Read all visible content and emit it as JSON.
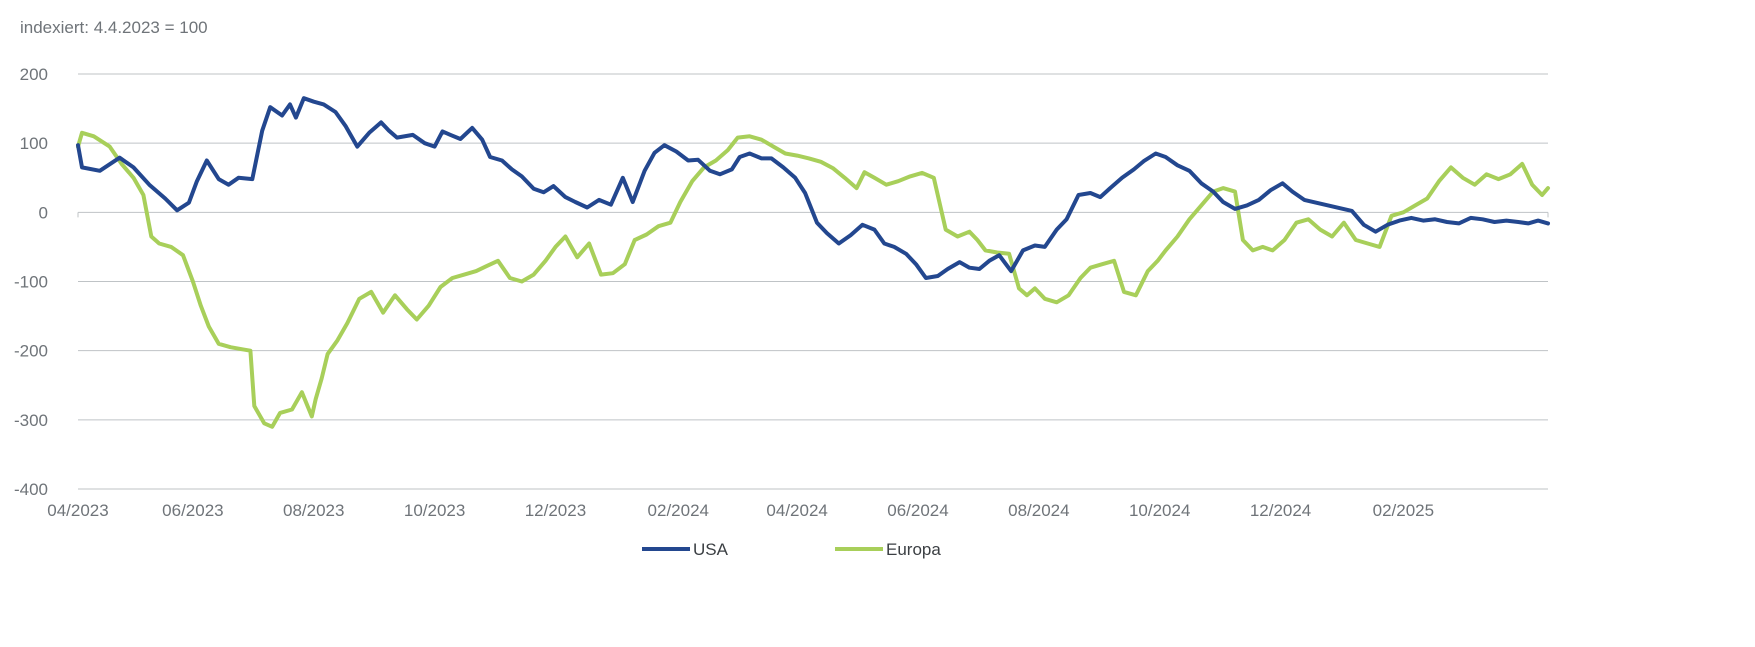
{
  "chart_data": {
    "type": "line",
    "title": "",
    "subtitle": "indexiert: 4.4.2023 = 100",
    "xlabel": "",
    "ylabel": "",
    "ylim": [
      -400,
      200
    ],
    "yticks": [
      200,
      100,
      0,
      -100,
      -200,
      -300,
      -400
    ],
    "ytick_labels": [
      "200",
      "100",
      "0",
      "-100",
      "-200",
      "-300",
      "-400"
    ],
    "xlim": [
      "2023-04-04",
      "2025-04-15"
    ],
    "xticks": [
      "2023-04-04",
      "2023-06-01",
      "2023-08-01",
      "2023-10-01",
      "2023-12-01",
      "2024-02-01",
      "2024-04-01",
      "2024-06-01",
      "2024-08-01",
      "2024-10-01",
      "2024-12-01",
      "2025-02-01"
    ],
    "xtick_labels": [
      "04/2023",
      "06/2023",
      "08/2023",
      "10/2023",
      "12/2023",
      "02/2024",
      "04/2024",
      "06/2024",
      "08/2024",
      "10/2024",
      "12/2024",
      "02/2025"
    ],
    "grid": "horizontal",
    "legend_position": "bottom-center",
    "series": [
      {
        "name": "USA",
        "color": "#23478f",
        "x": [
          "2023-04-04",
          "2023-04-06",
          "2023-04-15",
          "2023-04-25",
          "2023-05-02",
          "2023-05-10",
          "2023-05-18",
          "2023-05-24",
          "2023-05-30",
          "2023-06-03",
          "2023-06-08",
          "2023-06-14",
          "2023-06-19",
          "2023-06-24",
          "2023-07-01",
          "2023-07-06",
          "2023-07-10",
          "2023-07-16",
          "2023-07-20",
          "2023-07-23",
          "2023-07-27",
          "2023-08-01",
          "2023-08-06",
          "2023-08-12",
          "2023-08-17",
          "2023-08-23",
          "2023-08-29",
          "2023-09-04",
          "2023-09-08",
          "2023-09-12",
          "2023-09-20",
          "2023-09-26",
          "2023-10-01",
          "2023-10-05",
          "2023-10-09",
          "2023-10-14",
          "2023-10-20",
          "2023-10-25",
          "2023-10-29",
          "2023-11-04",
          "2023-11-09",
          "2023-11-14",
          "2023-11-20",
          "2023-11-25",
          "2023-11-30",
          "2023-12-06",
          "2023-12-11",
          "2023-12-17",
          "2023-12-23",
          "2023-12-29",
          "2024-01-04",
          "2024-01-09",
          "2024-01-15",
          "2024-01-20",
          "2024-01-25",
          "2024-01-31",
          "2024-02-06",
          "2024-02-11",
          "2024-02-17",
          "2024-02-22",
          "2024-02-28",
          "2024-03-03",
          "2024-03-08",
          "2024-03-14",
          "2024-03-19",
          "2024-03-25",
          "2024-03-31",
          "2024-04-05",
          "2024-04-11",
          "2024-04-16",
          "2024-04-22",
          "2024-04-28",
          "2024-05-04",
          "2024-05-10",
          "2024-05-15",
          "2024-05-20",
          "2024-05-26",
          "2024-05-31",
          "2024-06-05",
          "2024-06-11",
          "2024-06-16",
          "2024-06-22",
          "2024-06-27",
          "2024-07-02",
          "2024-07-07",
          "2024-07-12",
          "2024-07-18",
          "2024-07-24",
          "2024-07-30",
          "2024-08-04",
          "2024-08-10",
          "2024-08-15",
          "2024-08-21",
          "2024-08-27",
          "2024-09-01",
          "2024-09-06",
          "2024-09-12",
          "2024-09-18",
          "2024-09-23",
          "2024-09-29",
          "2024-10-04",
          "2024-10-10",
          "2024-10-16",
          "2024-10-22",
          "2024-10-28",
          "2024-11-02",
          "2024-11-08",
          "2024-11-14",
          "2024-11-20",
          "2024-11-26",
          "2024-12-02",
          "2024-12-07",
          "2024-12-13",
          "2024-12-19",
          "2024-12-25",
          "2024-12-31",
          "2025-01-06",
          "2025-01-12",
          "2025-01-18",
          "2025-01-24",
          "2025-01-30",
          "2025-02-05",
          "2025-02-11",
          "2025-02-17",
          "2025-02-23",
          "2025-03-01",
          "2025-03-07",
          "2025-03-13",
          "2025-03-19",
          "2025-03-25",
          "2025-03-31",
          "2025-04-05",
          "2025-04-10",
          "2025-04-15"
        ],
        "values": [
          97,
          65,
          60,
          79,
          65,
          40,
          20,
          3,
          14,
          45,
          75,
          48,
          40,
          50,
          48,
          118,
          152,
          140,
          156,
          137,
          165,
          160,
          156,
          145,
          125,
          95,
          115,
          130,
          118,
          108,
          112,
          100,
          95,
          117,
          112,
          106,
          122,
          105,
          80,
          75,
          62,
          52,
          34,
          29,
          38,
          22,
          15,
          7,
          18,
          11,
          50,
          15,
          60,
          86,
          97,
          88,
          75,
          76,
          60,
          55,
          62,
          80,
          85,
          78,
          78,
          65,
          50,
          28,
          -15,
          -30,
          -45,
          -33,
          -18,
          -25,
          -45,
          -50,
          -60,
          -75,
          -95,
          -92,
          -82,
          -72,
          -80,
          -82,
          -70,
          -62,
          -85,
          -55,
          -48,
          -50,
          -25,
          -10,
          25,
          28,
          22,
          35,
          50,
          62,
          74,
          85,
          80,
          68,
          60,
          42,
          30,
          15,
          5,
          10,
          18,
          32,
          42,
          30,
          18,
          14,
          10,
          6,
          2,
          -18,
          -28,
          -18,
          -12,
          -8,
          -12,
          -10,
          -14,
          -16,
          -8,
          -10,
          -14,
          -12,
          -14,
          -16,
          -12,
          -16
        ]
      },
      {
        "name": "Europa",
        "color": "#a8cf5a",
        "x": [
          "2023-04-04",
          "2023-04-06",
          "2023-04-12",
          "2023-04-20",
          "2023-04-26",
          "2023-05-02",
          "2023-05-07",
          "2023-05-11",
          "2023-05-15",
          "2023-05-21",
          "2023-05-27",
          "2023-06-01",
          "2023-06-05",
          "2023-06-09",
          "2023-06-14",
          "2023-06-20",
          "2023-06-26",
          "2023-06-30",
          "2023-07-02",
          "2023-07-07",
          "2023-07-11",
          "2023-07-15",
          "2023-07-21",
          "2023-07-26",
          "2023-07-31",
          "2023-08-02",
          "2023-08-05",
          "2023-08-08",
          "2023-08-13",
          "2023-08-18",
          "2023-08-24",
          "2023-08-30",
          "2023-09-05",
          "2023-09-11",
          "2023-09-17",
          "2023-09-22",
          "2023-09-28",
          "2023-10-04",
          "2023-10-10",
          "2023-10-16",
          "2023-10-22",
          "2023-10-27",
          "2023-11-02",
          "2023-11-08",
          "2023-11-14",
          "2023-11-20",
          "2023-11-26",
          "2023-12-01",
          "2023-12-06",
          "2023-12-12",
          "2023-12-18",
          "2023-12-24",
          "2023-12-30",
          "2024-01-05",
          "2024-01-10",
          "2024-01-16",
          "2024-01-22",
          "2024-01-28",
          "2024-02-02",
          "2024-02-08",
          "2024-02-14",
          "2024-02-20",
          "2024-02-26",
          "2024-03-02",
          "2024-03-08",
          "2024-03-14",
          "2024-03-20",
          "2024-03-26",
          "2024-04-01",
          "2024-04-07",
          "2024-04-13",
          "2024-04-19",
          "2024-04-25",
          "2024-05-01",
          "2024-05-05",
          "2024-05-10",
          "2024-05-16",
          "2024-05-22",
          "2024-05-28",
          "2024-06-03",
          "2024-06-09",
          "2024-06-15",
          "2024-06-21",
          "2024-06-27",
          "2024-07-01",
          "2024-07-05",
          "2024-07-11",
          "2024-07-17",
          "2024-07-22",
          "2024-07-26",
          "2024-07-30",
          "2024-08-04",
          "2024-08-10",
          "2024-08-16",
          "2024-08-22",
          "2024-08-27",
          "2024-09-02",
          "2024-09-08",
          "2024-09-13",
          "2024-09-19",
          "2024-09-25",
          "2024-09-30",
          "2024-10-04",
          "2024-10-10",
          "2024-10-16",
          "2024-10-22",
          "2024-10-28",
          "2024-11-02",
          "2024-11-08",
          "2024-11-12",
          "2024-11-17",
          "2024-11-22",
          "2024-11-27",
          "2024-12-03",
          "2024-12-09",
          "2024-12-15",
          "2024-12-21",
          "2024-12-27",
          "2025-01-02",
          "2025-01-08",
          "2025-01-14",
          "2025-01-20",
          "2025-01-26",
          "2025-02-01",
          "2025-02-07",
          "2025-02-13",
          "2025-02-19",
          "2025-02-25",
          "2025-03-03",
          "2025-03-09",
          "2025-03-15",
          "2025-03-21",
          "2025-03-27",
          "2025-04-02",
          "2025-04-07",
          "2025-04-12",
          "2025-04-15"
        ],
        "values": [
          95,
          115,
          110,
          95,
          70,
          50,
          25,
          -35,
          -45,
          -50,
          -62,
          -100,
          -135,
          -165,
          -190,
          -195,
          -198,
          -200,
          -280,
          -305,
          -310,
          -290,
          -285,
          -260,
          -295,
          -270,
          -240,
          -205,
          -185,
          -160,
          -125,
          -115,
          -145,
          -120,
          -140,
          -155,
          -135,
          -108,
          -95,
          -90,
          -85,
          -78,
          -70,
          -95,
          -100,
          -90,
          -70,
          -50,
          -35,
          -65,
          -45,
          -90,
          -88,
          -75,
          -40,
          -32,
          -20,
          -15,
          15,
          45,
          65,
          75,
          90,
          108,
          110,
          105,
          95,
          85,
          82,
          78,
          73,
          64,
          50,
          35,
          58,
          50,
          40,
          45,
          52,
          57,
          50,
          -25,
          -35,
          -28,
          -40,
          -55,
          -58,
          -60,
          -110,
          -120,
          -110,
          -125,
          -130,
          -120,
          -95,
          -80,
          -75,
          -70,
          -115,
          -120,
          -85,
          -70,
          -55,
          -35,
          -10,
          10,
          30,
          35,
          30,
          -40,
          -55,
          -50,
          -55,
          -40,
          -15,
          -10,
          -25,
          -35,
          -15,
          -40,
          -45,
          -50,
          -5,
          0,
          10,
          20,
          45,
          65,
          50,
          40,
          55,
          48,
          55,
          70,
          40,
          25,
          35
        ]
      }
    ]
  }
}
